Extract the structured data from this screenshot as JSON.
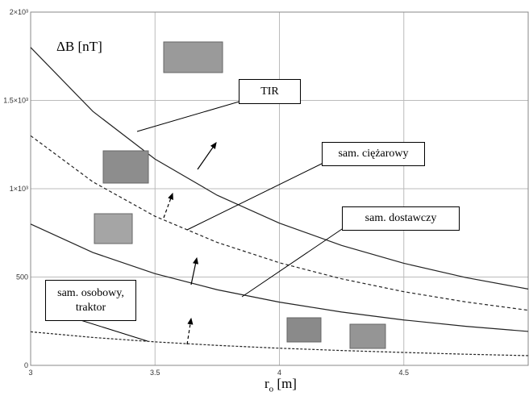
{
  "chart_data": {
    "type": "line",
    "ylabel": "ΔB [nT]",
    "xlabel": {
      "base": "r",
      "sub": "o",
      "unit": "[m]"
    },
    "x": [
      3,
      3.25,
      3.5,
      3.75,
      4,
      4.25,
      4.5,
      4.75,
      5
    ],
    "series": [
      {
        "name": "TIR",
        "color": "#222222",
        "dash": "solid",
        "values": [
          1800,
          1438,
          1168,
          963,
          805,
          679,
          578,
          497,
          432
        ]
      },
      {
        "name": "sam. ciężarowy",
        "color": "#222222",
        "dash": "dashed",
        "values": [
          1300,
          1039,
          844,
          696,
          581,
          490,
          417,
          359,
          312
        ]
      },
      {
        "name": "sam. dostawczy",
        "color": "#222222",
        "dash": "solid",
        "values": [
          800,
          639,
          519,
          428,
          358,
          302,
          257,
          221,
          192
        ]
      },
      {
        "name": "sam. osobowy, traktor",
        "color": "#222222",
        "dash": "dotted",
        "values": [
          190,
          158,
          133,
          113,
          97,
          84,
          73,
          63,
          55
        ]
      }
    ],
    "xlim": [
      3,
      5
    ],
    "xticks": [
      3,
      3.5,
      4,
      4.5
    ],
    "ylim": [
      0,
      2000
    ],
    "yticks": [
      0,
      500,
      {
        "value": 1000,
        "label": "1×10³"
      },
      {
        "value": 1500,
        "label": "1.5×10³"
      },
      {
        "value": 2000,
        "label": "2×10³"
      }
    ],
    "grid": true
  }
}
